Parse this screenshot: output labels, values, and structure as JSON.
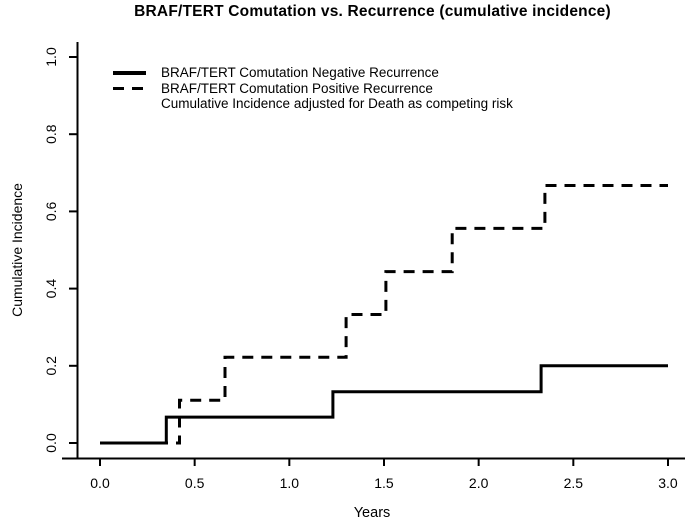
{
  "page": {
    "background": "#ffffff",
    "foreground": "#000000"
  },
  "chart_data": {
    "type": "line",
    "subtype": "step",
    "title": "BRAF/TERT Comutation vs. Recurrence (cumulative incidence)",
    "xlabel": "Years",
    "ylabel": "Cumulative Incidence",
    "xlim": [
      0.0,
      3.0
    ],
    "ylim": [
      0.0,
      1.0
    ],
    "x_tick_labels": [
      "0.0",
      "0.5",
      "1.0",
      "1.5",
      "2.0",
      "2.5",
      "3.0"
    ],
    "y_tick_labels": [
      "0.0",
      "0.2",
      "0.4",
      "0.6",
      "0.8",
      "1.0"
    ],
    "grid": false,
    "legend_position": "top-left",
    "note": "Cumulative Incidence adjusted for Death as competing risk",
    "series": [
      {
        "name": "BRAF/TERT Comutation Negative Recurrence",
        "line_style": "solid",
        "color": "#000000",
        "step_points": [
          [
            0.0,
            0.0
          ],
          [
            0.35,
            0.0
          ],
          [
            0.35,
            0.067
          ],
          [
            1.23,
            0.067
          ],
          [
            1.23,
            0.133
          ],
          [
            2.33,
            0.133
          ],
          [
            2.33,
            0.2
          ],
          [
            3.0,
            0.2
          ]
        ]
      },
      {
        "name": "BRAF/TERT Comutation Positive Recurrence",
        "line_style": "dashed",
        "color": "#000000",
        "step_points": [
          [
            0.0,
            0.0
          ],
          [
            0.42,
            0.0
          ],
          [
            0.42,
            0.111
          ],
          [
            0.66,
            0.111
          ],
          [
            0.66,
            0.222
          ],
          [
            1.3,
            0.222
          ],
          [
            1.3,
            0.333
          ],
          [
            1.51,
            0.333
          ],
          [
            1.51,
            0.444
          ],
          [
            1.86,
            0.444
          ],
          [
            1.86,
            0.556
          ],
          [
            2.35,
            0.556
          ],
          [
            2.35,
            0.667
          ],
          [
            3.0,
            0.667
          ]
        ]
      }
    ]
  },
  "legend": {
    "items": [
      {
        "label": "BRAF/TERT Comutation Negative Recurrence",
        "line_style": "solid"
      },
      {
        "label": "BRAF/TERT Comutation Positive Recurrence",
        "line_style": "dashed"
      },
      {
        "label": "Cumulative Incidence adjusted for Death as competing risk",
        "line_style": "none"
      }
    ]
  }
}
